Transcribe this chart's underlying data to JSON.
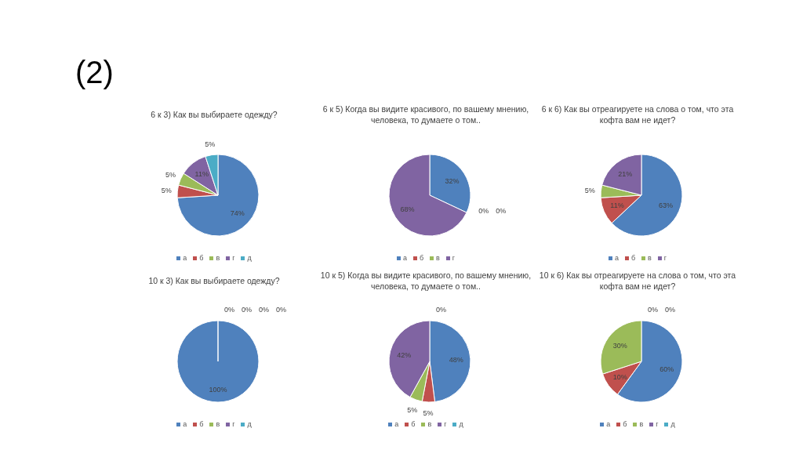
{
  "chart_data": [
    {
      "type": "pie",
      "title": "6 к 3) Как вы выбираете одежду?",
      "annotations": [
        "(2)"
      ],
      "categories": [
        "а",
        "б",
        "в",
        "г",
        "д"
      ],
      "values": [
        74,
        5,
        5,
        11,
        5
      ],
      "colors": [
        "#4f81bd",
        "#c0504d",
        "#9bbb59",
        "#8064a2",
        "#4bacc6"
      ],
      "value_labels": [
        "74%",
        "5%",
        "5%",
        "11%",
        "5%"
      ],
      "legend": "bottom"
    },
    {
      "type": "pie",
      "title": "6 к 5) Когда вы видите красивого, по вашему мнению, человека, то думаете о том..",
      "categories": [
        "а",
        "б",
        "в",
        "г"
      ],
      "values": [
        32,
        0,
        0,
        68
      ],
      "colors": [
        "#4f81bd",
        "#c0504d",
        "#9bbb59",
        "#8064a2"
      ],
      "value_labels": [
        "32%",
        "0%",
        "0%",
        "68%"
      ],
      "legend": "bottom"
    },
    {
      "type": "pie",
      "title": "6 к 6) Как вы отреагируете на слова о том, что эта кофта вам не идет?",
      "categories": [
        "а",
        "б",
        "в",
        "г"
      ],
      "values": [
        63,
        11,
        5,
        21
      ],
      "colors": [
        "#4f81bd",
        "#c0504d",
        "#9bbb59",
        "#8064a2"
      ],
      "value_labels": [
        "63%",
        "11%",
        "5%",
        "21%"
      ],
      "legend": "bottom"
    },
    {
      "type": "pie",
      "title": "10 к 3) Как вы выбираете одежду?",
      "categories": [
        "а",
        "б",
        "в",
        "г",
        "д"
      ],
      "values": [
        100,
        0,
        0,
        0,
        0
      ],
      "colors": [
        "#4f81bd",
        "#c0504d",
        "#9bbb59",
        "#8064a2",
        "#4bacc6"
      ],
      "value_labels": [
        "100%",
        "0%",
        "0%",
        "0%",
        "0%"
      ],
      "legend": "bottom"
    },
    {
      "type": "pie",
      "title": "10 к 5) Когда вы видите красивого, по вашему мнению, человека, то думаете о том..",
      "categories": [
        "а",
        "б",
        "в",
        "г",
        "д"
      ],
      "values": [
        48,
        5,
        5,
        42,
        0
      ],
      "colors": [
        "#4f81bd",
        "#c0504d",
        "#9bbb59",
        "#8064a2",
        "#4bacc6"
      ],
      "value_labels": [
        "48%",
        "5%",
        "5%",
        "42%",
        "0%"
      ],
      "legend": "bottom"
    },
    {
      "type": "pie",
      "title": "10 к 6) Как вы отреагируете на слова о том, что эта кофта вам не идет?",
      "categories": [
        "а",
        "б",
        "в",
        "г",
        "д"
      ],
      "values": [
        60,
        10,
        30,
        0,
        0
      ],
      "colors": [
        "#4f81bd",
        "#c0504d",
        "#9bbb59",
        "#8064a2",
        "#4bacc6"
      ],
      "value_labels": [
        "60%",
        "10%",
        "30%",
        "0%",
        "0%"
      ],
      "legend": "bottom"
    }
  ]
}
